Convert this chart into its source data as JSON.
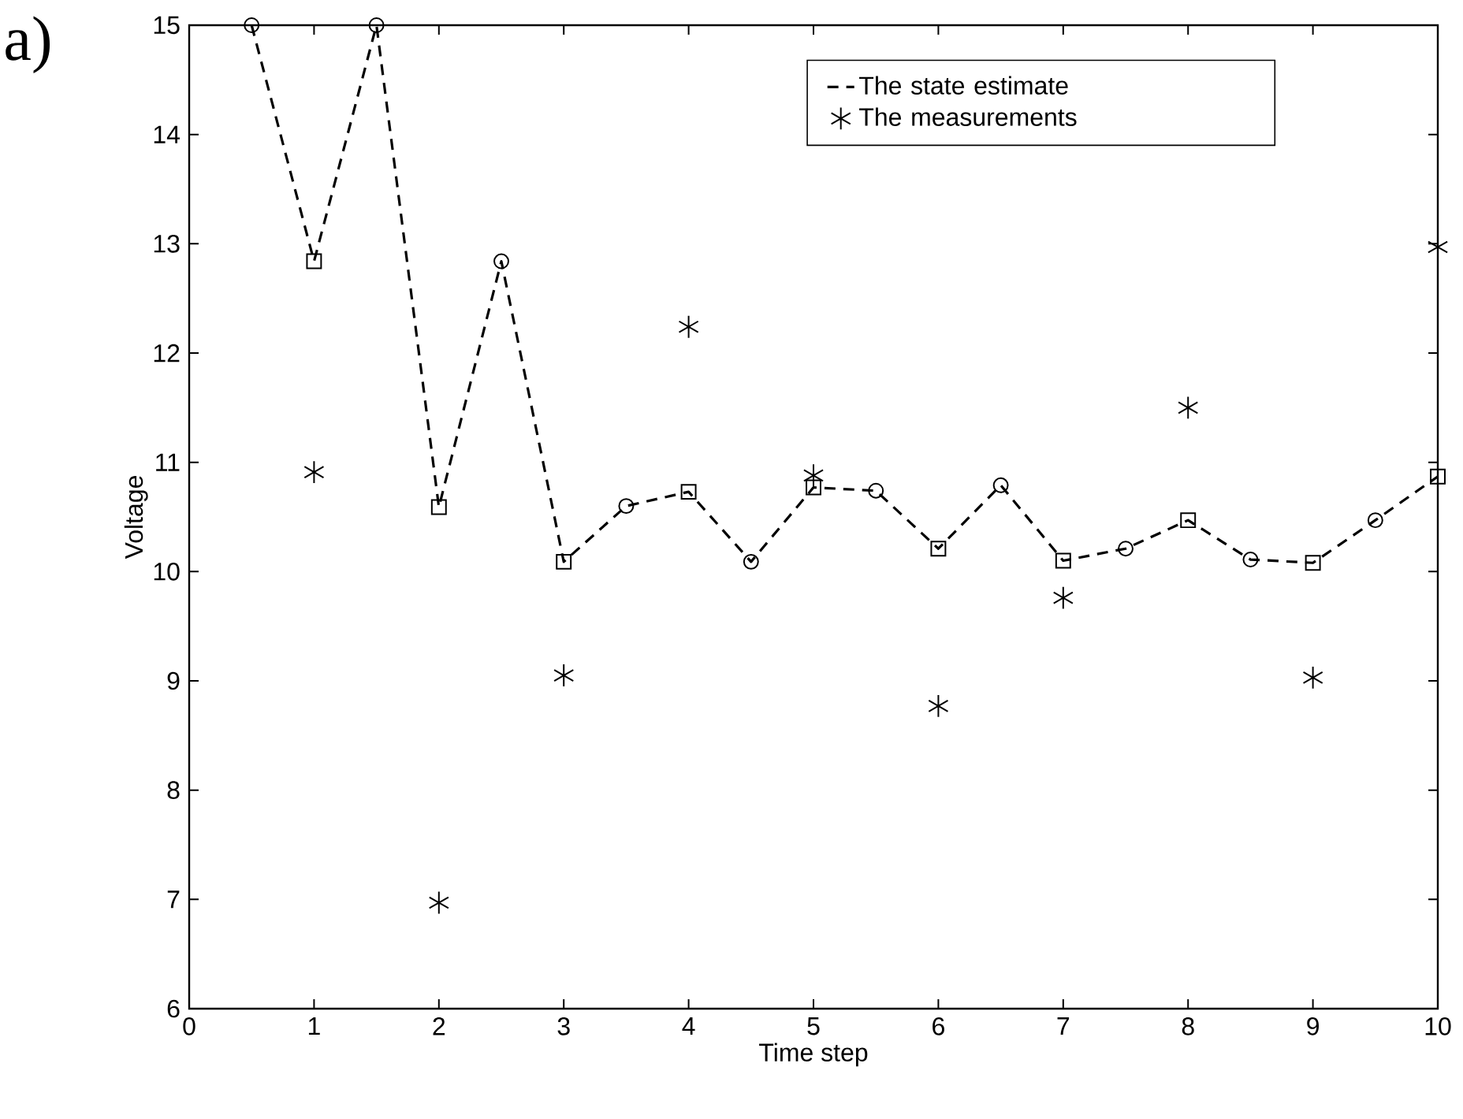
{
  "chart_data": {
    "type": "line",
    "xlabel": "Time step",
    "ylabel": "Voltage",
    "annotations": [
      "a)"
    ],
    "xlim": [
      0,
      10
    ],
    "ylim": [
      6,
      15
    ],
    "xticks": [
      0,
      1,
      2,
      3,
      4,
      5,
      6,
      7,
      8,
      9,
      10
    ],
    "yticks": [
      6,
      7,
      8,
      9,
      10,
      11,
      12,
      13,
      14,
      15
    ],
    "grid": false,
    "legend": "top right",
    "series": [
      {
        "name": "The state estimate",
        "line_style": "dashed",
        "marker": "none",
        "color": "#000000",
        "x": [
          0.5,
          1,
          1.5,
          2,
          2.5,
          3,
          3.5,
          4,
          4.5,
          5,
          5.5,
          6,
          6.5,
          7,
          7.5,
          8,
          8.5,
          9,
          9.5,
          10
        ],
        "values": [
          15,
          12.84,
          15,
          10.59,
          12.84,
          10.09,
          10.6,
          10.73,
          10.09,
          10.77,
          10.74,
          10.21,
          10.79,
          10.1,
          10.21,
          10.47,
          10.11,
          10.08,
          10.47,
          10.87
        ]
      },
      {
        "type": "scatter",
        "marker": "circle",
        "color": "#000000",
        "x": [
          0.5,
          1.5,
          2.5,
          3.5,
          4.5,
          5.5,
          6.5,
          7.5,
          8.5,
          9.5
        ],
        "values": [
          15,
          15,
          12.84,
          10.6,
          10.09,
          10.74,
          10.79,
          10.21,
          10.11,
          10.47
        ]
      },
      {
        "type": "scatter",
        "marker": "square",
        "color": "#000000",
        "x": [
          1,
          2,
          3,
          4,
          5,
          6,
          7,
          8,
          9,
          10
        ],
        "values": [
          12.84,
          10.59,
          10.09,
          10.73,
          10.77,
          10.21,
          10.1,
          10.47,
          10.08,
          10.87
        ]
      },
      {
        "name": "The measurements",
        "type": "scatter",
        "marker": "cross",
        "color": "#000000",
        "x": [
          1,
          2,
          3,
          4,
          5,
          6,
          7,
          8,
          9,
          10
        ],
        "values": [
          10.91,
          6.97,
          9.05,
          12.24,
          10.88,
          8.77,
          9.76,
          11.5,
          9.03,
          12.97
        ]
      }
    ]
  }
}
